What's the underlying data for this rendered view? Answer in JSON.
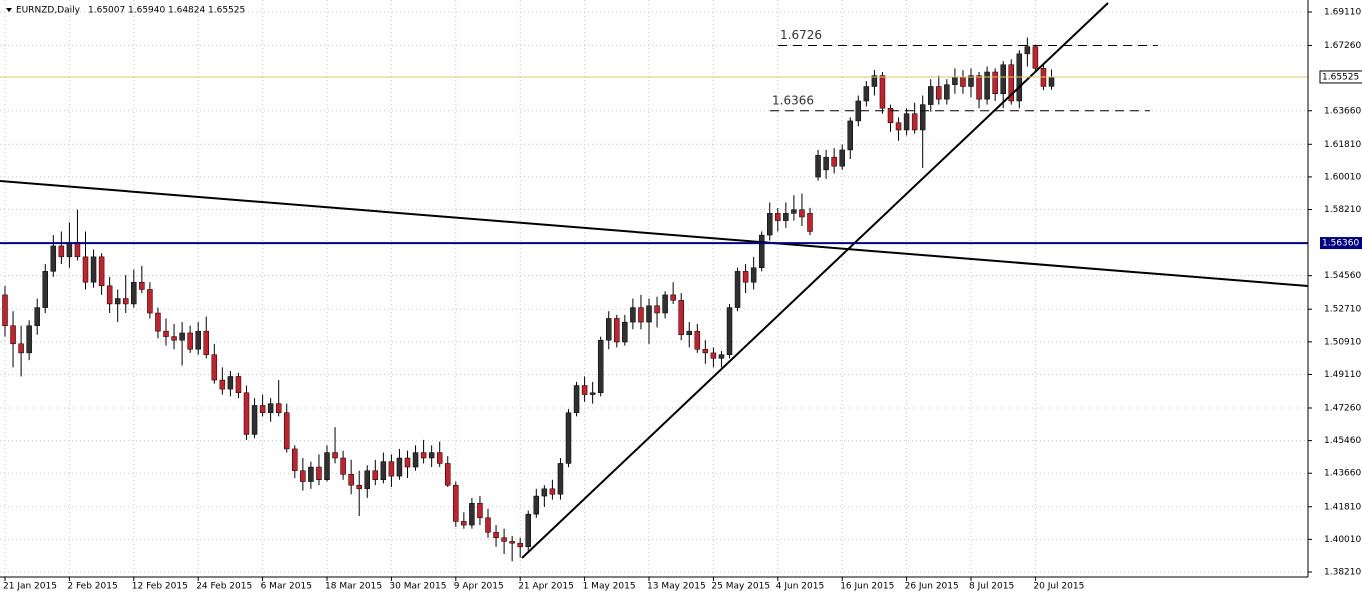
{
  "chart_data": {
    "type": "candlestick",
    "title": "EURNZD,Daily",
    "header_values": [
      1.65007,
      {
        "value": 1.6594,
        "label": "1.65940"
      },
      1.64824,
      1.65525
    ],
    "categories": [
      "21 Jan 2015",
      null,
      null,
      null,
      null,
      null,
      null,
      null,
      "2 Feb 2015",
      null,
      null,
      null,
      null,
      null,
      null,
      null,
      "12 Feb 2015",
      null,
      null,
      null,
      null,
      null,
      null,
      null,
      "24 Feb 2015",
      null,
      null,
      null,
      null,
      null,
      null,
      null,
      "6 Mar 2015",
      null,
      null,
      null,
      null,
      null,
      null,
      null,
      "18 Mar 2015",
      null,
      null,
      null,
      null,
      null,
      null,
      null,
      "30 Mar 2015",
      null,
      null,
      null,
      null,
      null,
      null,
      null,
      "9 Apr 2015",
      null,
      null,
      null,
      null,
      null,
      null,
      null,
      "21 Apr 2015",
      null,
      null,
      null,
      null,
      null,
      null,
      null,
      "1 May 2015",
      null,
      null,
      null,
      null,
      null,
      null,
      null,
      "13 May 2015",
      null,
      null,
      null,
      null,
      null,
      null,
      null,
      "25 May 2015",
      null,
      null,
      null,
      null,
      null,
      null,
      null,
      "4 Jun 2015",
      null,
      null,
      null,
      null,
      null,
      null,
      null,
      "16 Jun 2015",
      null,
      null,
      null,
      null,
      null,
      null,
      null,
      "26 Jun 2015",
      null,
      null,
      null,
      null,
      null,
      null,
      null,
      "8 Jul 2015",
      null,
      null,
      null,
      null,
      null,
      null,
      null,
      "20 Jul 2015",
      null,
      null
    ],
    "open": [
      1.535,
      1.518,
      1.508,
      1.503,
      1.518,
      1.528,
      1.548,
      1.562,
      1.556,
      1.564,
      1.556,
      1.542,
      1.556,
      1.54,
      1.53,
      1.533,
      1.53,
      1.542,
      1.538,
      1.525,
      1.515,
      1.512,
      1.51,
      1.514,
      1.505,
      1.515,
      1.502,
      1.488,
      1.483,
      1.49,
      1.481,
      1.458,
      1.474,
      1.47,
      1.475,
      1.47,
      1.45,
      1.438,
      1.432,
      1.44,
      1.433,
      1.448,
      1.445,
      1.436,
      1.43,
      1.428,
      1.438,
      1.433,
      1.443,
      1.435,
      1.445,
      1.44,
      1.448,
      1.445,
      1.448,
      1.442,
      1.43,
      1.41,
      1.408,
      1.42,
      1.412,
      1.404,
      1.401,
      1.399,
      1.398,
      1.396,
      1.414,
      1.424,
      1.428,
      1.425,
      1.442,
      1.47,
      1.485,
      1.48,
      1.481,
      1.51,
      1.522,
      1.509,
      1.52,
      1.528,
      1.52,
      1.529,
      1.525,
      1.535,
      1.532,
      1.513,
      1.515,
      1.505,
      1.503,
      1.5,
      1.502,
      1.528,
      1.548,
      1.542,
      1.55,
      1.568,
      1.58,
      1.576,
      1.58,
      1.582,
      1.58,
      1.6,
      1.604,
      1.611,
      1.606,
      1.615,
      1.631,
      1.642,
      1.65,
      1.656,
      1.638,
      1.63,
      1.626,
      1.635,
      1.626,
      1.64,
      1.65,
      1.643,
      1.651,
      1.655,
      1.65,
      1.656,
      1.643,
      1.658,
      1.646,
      1.662,
      1.642,
      1.668,
      1.672,
      1.66,
      1.65007
    ],
    "high": [
      1.54,
      1.526,
      1.518,
      1.521,
      1.533,
      1.552,
      1.568,
      1.57,
      1.575,
      1.582,
      1.57,
      1.56,
      1.558,
      1.545,
      1.538,
      1.546,
      1.549,
      1.551,
      1.542,
      1.528,
      1.522,
      1.519,
      1.52,
      1.518,
      1.52,
      1.523,
      1.508,
      1.495,
      1.493,
      1.492,
      1.485,
      1.478,
      1.48,
      1.478,
      1.488,
      1.475,
      1.452,
      1.445,
      1.443,
      1.447,
      1.452,
      1.462,
      1.449,
      1.444,
      1.438,
      1.441,
      1.444,
      1.448,
      1.447,
      1.45,
      1.449,
      1.452,
      1.455,
      1.452,
      1.454,
      1.446,
      1.432,
      1.415,
      1.423,
      1.424,
      1.417,
      1.408,
      1.406,
      1.402,
      1.401,
      1.416,
      1.428,
      1.43,
      1.433,
      1.445,
      1.472,
      1.487,
      1.49,
      1.487,
      1.512,
      1.526,
      1.524,
      1.524,
      1.533,
      1.535,
      1.533,
      1.534,
      1.537,
      1.542,
      1.536,
      1.52,
      1.519,
      1.51,
      1.506,
      1.504,
      1.53,
      1.55,
      1.552,
      1.556,
      1.57,
      1.586,
      1.583,
      1.586,
      1.59,
      1.591,
      1.583,
      1.615,
      1.615,
      1.616,
      1.618,
      1.633,
      1.645,
      1.653,
      1.659,
      1.658,
      1.64,
      1.633,
      1.638,
      1.641,
      1.645,
      1.654,
      1.656,
      1.654,
      1.66,
      1.659,
      1.66,
      1.658,
      1.661,
      1.66,
      1.664,
      1.665,
      1.67,
      1.677,
      1.673,
      1.662,
      1.6594
    ],
    "low": [
      1.512,
      1.495,
      1.49,
      1.499,
      1.513,
      1.525,
      1.545,
      1.552,
      1.55,
      1.554,
      1.538,
      1.539,
      1.535,
      1.525,
      1.52,
      1.525,
      1.528,
      1.536,
      1.522,
      1.511,
      1.507,
      1.505,
      1.496,
      1.503,
      1.502,
      1.5,
      1.486,
      1.48,
      1.479,
      1.478,
      1.455,
      1.456,
      1.468,
      1.465,
      1.468,
      1.448,
      1.434,
      1.427,
      1.428,
      1.43,
      1.432,
      1.442,
      1.433,
      1.425,
      1.413,
      1.423,
      1.43,
      1.431,
      1.429,
      1.433,
      1.434,
      1.438,
      1.442,
      1.44,
      1.44,
      1.429,
      1.407,
      1.406,
      1.406,
      1.408,
      1.401,
      1.396,
      1.392,
      1.388,
      1.39,
      1.394,
      1.412,
      1.418,
      1.422,
      1.422,
      1.44,
      1.468,
      1.476,
      1.475,
      1.479,
      1.505,
      1.506,
      1.507,
      1.516,
      1.516,
      1.508,
      1.517,
      1.522,
      1.53,
      1.51,
      1.506,
      1.503,
      1.497,
      1.495,
      1.495,
      1.5,
      1.526,
      1.536,
      1.538,
      1.548,
      1.565,
      1.57,
      1.572,
      1.576,
      1.573,
      1.568,
      1.598,
      1.599,
      1.602,
      1.604,
      1.61,
      1.628,
      1.639,
      1.645,
      1.635,
      1.625,
      1.62,
      1.623,
      1.624,
      1.605,
      1.636,
      1.64,
      1.64,
      1.646,
      1.646,
      1.644,
      1.638,
      1.64,
      1.642,
      1.638,
      1.64,
      1.638,
      1.661,
      1.658,
      1.648,
      1.64824
    ],
    "close": [
      1.518,
      1.508,
      1.503,
      1.518,
      1.528,
      1.548,
      1.562,
      1.556,
      1.564,
      1.556,
      1.542,
      1.556,
      1.54,
      1.53,
      1.533,
      1.53,
      1.542,
      1.538,
      1.525,
      1.515,
      1.512,
      1.51,
      1.514,
      1.505,
      1.515,
      1.502,
      1.488,
      1.483,
      1.49,
      1.481,
      1.458,
      1.474,
      1.47,
      1.475,
      1.47,
      1.45,
      1.438,
      1.432,
      1.44,
      1.433,
      1.448,
      1.445,
      1.436,
      1.43,
      1.428,
      1.438,
      1.433,
      1.443,
      1.435,
      1.445,
      1.44,
      1.448,
      1.445,
      1.448,
      1.442,
      1.43,
      1.41,
      1.408,
      1.42,
      1.412,
      1.404,
      1.401,
      1.399,
      1.398,
      1.396,
      1.414,
      1.424,
      1.428,
      1.425,
      1.442,
      1.47,
      1.485,
      1.48,
      1.481,
      1.51,
      1.522,
      1.509,
      1.52,
      1.528,
      1.52,
      1.529,
      1.525,
      1.535,
      1.532,
      1.513,
      1.515,
      1.505,
      1.503,
      1.5,
      1.502,
      1.528,
      1.548,
      1.542,
      1.55,
      1.568,
      1.58,
      1.576,
      1.58,
      1.582,
      1.578,
      1.57,
      1.612,
      1.611,
      1.606,
      1.615,
      1.631,
      1.642,
      1.65,
      1.656,
      1.638,
      1.63,
      1.626,
      1.635,
      1.626,
      1.64,
      1.65,
      1.643,
      1.651,
      1.655,
      1.65,
      1.656,
      1.643,
      1.658,
      1.646,
      1.662,
      1.642,
      1.668,
      1.672,
      1.66,
      1.65,
      1.65525
    ],
    "bull_color": "#303030",
    "bear_color": "#c8202a",
    "ylim": [
      1.37934,
      1.69772
    ],
    "yticks": [
      {
        "value": 1.6911,
        "label": "1.69110"
      },
      {
        "value": 1.6726,
        "label": "1.67260"
      },
      {
        "value": 1.6366,
        "label": "1.63660"
      },
      {
        "value": 1.6181,
        "label": "1.61810"
      },
      {
        "value": 1.6001,
        "label": "1.60010"
      },
      {
        "value": 1.5821,
        "label": "1.58210"
      },
      {
        "value": 1.5456,
        "label": "1.54560"
      },
      {
        "value": 1.5271,
        "label": "1.52710"
      },
      {
        "value": 1.5091,
        "label": "1.50910"
      },
      {
        "value": 1.4911,
        "label": "1.49110"
      },
      {
        "value": 1.4726,
        "label": "1.47260"
      },
      {
        "value": 1.4546,
        "label": "1.45460"
      },
      {
        "value": 1.4366,
        "label": "1.43660"
      },
      {
        "value": 1.4181,
        "label": "1.41810"
      },
      {
        "value": 1.4001,
        "label": "1.40010"
      },
      {
        "value": 1.3821,
        "label": "1.38210"
      }
    ],
    "grid": true,
    "levels": [
      1.6726,
      1.6366
    ],
    "support_line": {
      "value": 1.5636,
      "label": "1.56360"
    },
    "price_line": 1.65525
  }
}
